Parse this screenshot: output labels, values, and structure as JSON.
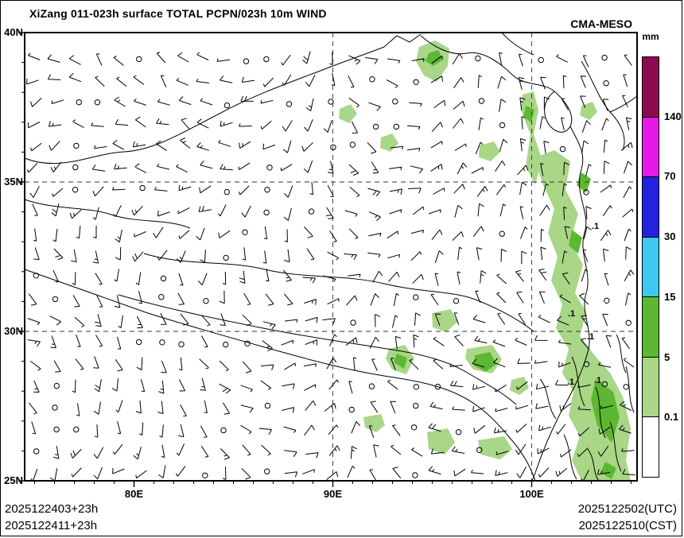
{
  "header": {
    "title": "XiZang 011-023h surface TOTAL PCPN/023h 10m WIND",
    "model": "CMA-MESO"
  },
  "footer": {
    "init_line_utc": "2025122403+23h",
    "init_line_cst": "2025122411+23h",
    "valid_utc": "2025122502(UTC)",
    "valid_cst": "2025122510(CST)"
  },
  "map": {
    "outline_paths": [
      "M 0,158 C 45,176 85,152 125,150 C 165,148 205,122 245,102 C 285,80 335,62 372,48 C 402,36 432,26 452,18 L 468,4 L 484,12 L 498,2",
      "M 498,4 C 512,16 534,30 556,26 C 576,22 598,38 614,54 C 630,68 652,62 666,74 C 682,88 692,104 686,118 C 678,132 662,124 656,110 C 650,94 656,82 666,74",
      "M 686,118 C 696,138 706,152 700,172 C 690,202 712,226 704,252 C 696,278 714,302 706,328 C 698,352 716,376 708,402 C 700,432 686,456 672,482 C 660,506 650,530 642,554 L 638,564",
      "M 0,298 C 52,316 102,334 152,352 C 202,368 252,382 302,396 C 352,410 402,424 452,432 C 492,438 522,444 546,456 C 572,468 592,488 610,510 C 626,528 636,546 642,564",
      "M 150,278 C 202,294 252,286 302,298 C 352,310 402,304 452,316 C 502,328 540,324 572,338 C 596,348 620,360 640,376",
      "M 118,330 C 180,348 240,360 300,372 C 360,384 420,392 468,400 C 508,406 538,416 560,430 C 580,442 600,452 618,468",
      "M 648,436 C 660,450 656,470 668,486 M 688,408 C 698,428 694,450 704,470 M 718,446 C 726,466 720,490 730,510 M 678,506 C 688,526 684,546 694,562 M 708,524 C 718,538 714,554 722,564 M 736,490 C 744,510 740,532 750,552",
      "M 600,0 C 612,14 626,22 640,28 M 700,36 C 714,58 722,84 736,100 C 750,114 758,132 752,148 M 736,100 C 750,94 762,86 770,80",
      "M 0,210 C 40,224 78,218 112,230 C 146,240 178,234 208,246",
      "M 756,420 C 762,440 758,460 766,478 M 744,380 C 752,396 748,412 756,428"
    ]
  },
  "chart_data": {
    "type": "heatmap",
    "subtype": "precipitation-wind-map",
    "title": "XiZang 011-023h surface TOTAL PCPN/023h 10m WIND",
    "description": "Accumulated surface total precipitation (shaded, mm) and 10 m wind barbs over the Tibetan Plateau, CMA-MESO forecast",
    "lon_range": [
      74.5,
      105.3
    ],
    "lat_range": [
      25,
      40
    ],
    "x_ticks": [
      {
        "lon": 80,
        "label": "80E"
      },
      {
        "lon": 90,
        "label": "90E"
      },
      {
        "lon": 100,
        "label": "100E"
      }
    ],
    "y_ticks": [
      {
        "lat": 40,
        "label": "40N"
      },
      {
        "lat": 35,
        "label": "35N"
      },
      {
        "lat": 30,
        "label": "30N"
      },
      {
        "lat": 25,
        "label": "25N"
      }
    ],
    "gridlines": {
      "lons": [
        90,
        100
      ],
      "lats": [
        35,
        30
      ]
    },
    "colorbar": {
      "title": "mm",
      "labels_top_to_bottom": [
        "140",
        "70",
        "30",
        "15",
        "5",
        "0.1"
      ],
      "levels_mm": [
        0.1,
        5,
        15,
        30,
        70,
        140
      ],
      "colors_top_to_bottom": [
        "#8d0a50",
        "#e619e6",
        "#2323dd",
        "#3cc8f0",
        "#5cb832",
        "#a9d687",
        "#ffffff"
      ]
    },
    "point_labels": [
      {
        "text": ".1",
        "x": 713,
        "y": 247
      },
      {
        "text": ".1",
        "x": 683,
        "y": 357
      },
      {
        "text": ".1",
        "x": 707,
        "y": 386
      },
      {
        "text": ".1",
        "x": 682,
        "y": 443
      },
      {
        "text": ".1",
        "x": 716,
        "y": 441
      }
    ],
    "precip_areas": {
      "light": [
        [
          [
            496,
            18
          ],
          [
            516,
            10
          ],
          [
            534,
            20
          ],
          [
            532,
            42
          ],
          [
            518,
            62
          ],
          [
            502,
            54
          ],
          [
            492,
            36
          ]
        ],
        [
          [
            396,
            96
          ],
          [
            410,
            90
          ],
          [
            418,
            102
          ],
          [
            408,
            114
          ],
          [
            395,
            108
          ]
        ],
        [
          [
            448,
            132
          ],
          [
            462,
            127
          ],
          [
            470,
            139
          ],
          [
            460,
            150
          ],
          [
            447,
            145
          ]
        ],
        [
          [
            572,
            142
          ],
          [
            590,
            137
          ],
          [
            598,
            150
          ],
          [
            586,
            162
          ],
          [
            571,
            157
          ]
        ],
        [
          [
            626,
            78
          ],
          [
            640,
            74
          ],
          [
            646,
            98
          ],
          [
            640,
            128
          ],
          [
            650,
            158
          ],
          [
            642,
            192
          ],
          [
            630,
            168
          ],
          [
            636,
            128
          ],
          [
            624,
            98
          ]
        ],
        [
          [
            640,
            158
          ],
          [
            666,
            148
          ],
          [
            686,
            162
          ],
          [
            680,
            198
          ],
          [
            696,
            228
          ],
          [
            686,
            262
          ],
          [
            702,
            292
          ],
          [
            692,
            328
          ],
          [
            706,
            352
          ],
          [
            698,
            382
          ],
          [
            718,
            408
          ],
          [
            736,
            428
          ],
          [
            752,
            458
          ],
          [
            762,
            498
          ],
          [
            756,
            538
          ],
          [
            762,
            564
          ],
          [
            700,
            564
          ],
          [
            688,
            538
          ],
          [
            698,
            508
          ],
          [
            684,
            482
          ],
          [
            690,
            452
          ],
          [
            676,
            428
          ],
          [
            684,
            398
          ],
          [
            668,
            372
          ],
          [
            676,
            342
          ],
          [
            662,
            312
          ],
          [
            670,
            282
          ],
          [
            658,
            252
          ],
          [
            666,
            222
          ],
          [
            652,
            192
          ]
        ],
        [
          [
            458,
            398
          ],
          [
            478,
            393
          ],
          [
            490,
            410
          ],
          [
            480,
            430
          ],
          [
            462,
            424
          ],
          [
            454,
            410
          ]
        ],
        [
          [
            512,
            353
          ],
          [
            536,
            348
          ],
          [
            544,
            364
          ],
          [
            530,
            377
          ],
          [
            513,
            371
          ]
        ],
        [
          [
            556,
            398
          ],
          [
            588,
            393
          ],
          [
            600,
            411
          ],
          [
            588,
            429
          ],
          [
            564,
            424
          ],
          [
            554,
            410
          ]
        ],
        [
          [
            506,
            503
          ],
          [
            532,
            498
          ],
          [
            541,
            516
          ],
          [
            528,
            531
          ],
          [
            508,
            524
          ]
        ],
        [
          [
            426,
            484
          ],
          [
            448,
            480
          ],
          [
            453,
            494
          ],
          [
            442,
            503
          ],
          [
            428,
            497
          ]
        ],
        [
          [
            570,
            513
          ],
          [
            603,
            508
          ],
          [
            613,
            524
          ],
          [
            598,
            537
          ],
          [
            573,
            531
          ]
        ],
        [
          [
            612,
            437
          ],
          [
            628,
            433
          ],
          [
            634,
            447
          ],
          [
            622,
            456
          ],
          [
            610,
            450
          ]
        ],
        [
          [
            700,
            92
          ],
          [
            714,
            87
          ],
          [
            720,
            100
          ],
          [
            710,
            110
          ],
          [
            698,
            104
          ]
        ]
      ],
      "dark": [
        [
          [
            508,
            26
          ],
          [
            520,
            22
          ],
          [
            526,
            34
          ],
          [
            514,
            42
          ],
          [
            504,
            36
          ]
        ],
        [
          [
            630,
            92
          ],
          [
            641,
            97
          ],
          [
            637,
            113
          ],
          [
            627,
            106
          ]
        ],
        [
          [
            700,
            176
          ],
          [
            712,
            184
          ],
          [
            706,
            202
          ],
          [
            694,
            192
          ]
        ],
        [
          [
            688,
            248
          ],
          [
            701,
            258
          ],
          [
            696,
            278
          ],
          [
            684,
            268
          ]
        ],
        [
          [
            718,
            436
          ],
          [
            740,
            452
          ],
          [
            748,
            484
          ],
          [
            738,
            516
          ],
          [
            720,
            494
          ],
          [
            712,
            462
          ]
        ],
        [
          [
            566,
            406
          ],
          [
            585,
            402
          ],
          [
            593,
            417
          ],
          [
            580,
            427
          ],
          [
            565,
            419
          ]
        ],
        [
          [
            468,
            404
          ],
          [
            481,
            409
          ],
          [
            477,
            423
          ],
          [
            464,
            415
          ]
        ],
        [
          [
            730,
            540
          ],
          [
            744,
            548
          ],
          [
            738,
            562
          ],
          [
            724,
            554
          ]
        ]
      ]
    },
    "wind": {
      "x0": 13,
      "y0": 34,
      "dx": 26.6,
      "dy": 27.4,
      "cols": 29,
      "rows": 20,
      "seed": 12,
      "calm_fraction": 0.1,
      "shaft_len": 16
    }
  }
}
